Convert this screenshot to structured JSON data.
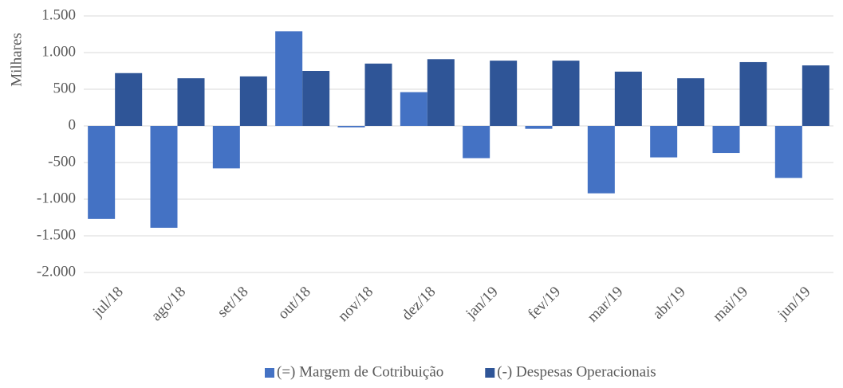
{
  "chart_data": {
    "type": "bar",
    "y_label": "Milhares",
    "categories": [
      "jul/18",
      "ago/18",
      "set/18",
      "out/18",
      "nov/18",
      "dez/18",
      "jan/19",
      "fev/19",
      "mar/19",
      "abr/19",
      "mai/19",
      "jun/19"
    ],
    "series": [
      {
        "name": "(=) Margem de Cotribuição",
        "color": "#4472c4",
        "values": [
          -1270,
          -1390,
          -580,
          1290,
          -20,
          460,
          -440,
          -40,
          -920,
          -430,
          -370,
          -710
        ]
      },
      {
        "name": "(-) Despesas Operacionais",
        "color": "#2f5597",
        "values": [
          720,
          650,
          675,
          750,
          850,
          910,
          890,
          890,
          740,
          650,
          870,
          825
        ]
      }
    ],
    "ylim": [
      -2000,
      1500
    ],
    "yticks": [
      {
        "value": -2000,
        "label": "-2.000"
      },
      {
        "value": -1500,
        "label": "-1.500"
      },
      {
        "value": -1000,
        "label": "-1.000"
      },
      -500,
      0,
      500,
      {
        "value": 1000,
        "label": "1.000"
      },
      {
        "value": 1500,
        "label": "1.500"
      }
    ],
    "grid": true,
    "legend": "bottom"
  }
}
